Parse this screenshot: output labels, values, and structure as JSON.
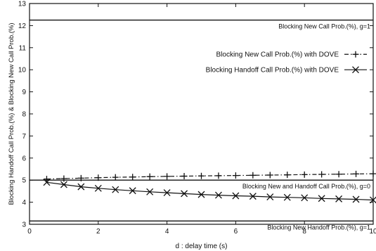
{
  "chart_data": {
    "type": "line",
    "xlabel": "d : delay time (s)",
    "ylabel": "Blocking Handoff Call Prob.(%) & Blocking New Call Prob.(%)",
    "xlim": [
      0,
      10
    ],
    "ylim": [
      3,
      13
    ],
    "xticks": [
      0,
      2,
      4,
      6,
      8,
      10
    ],
    "yticks": [
      3,
      4,
      5,
      6,
      7,
      8,
      9,
      10,
      11,
      12,
      13
    ],
    "grid": false,
    "legend_position": "top-right",
    "series": [
      {
        "name": "Blocking New Call Prob.(%) with DOVE",
        "marker": "plus",
        "line": "dash-dot",
        "x": [
          0.5,
          1.0,
          1.5,
          2.0,
          2.5,
          3.0,
          3.5,
          4.0,
          4.5,
          5.0,
          5.5,
          6.0,
          6.5,
          7.0,
          7.5,
          8.0,
          8.5,
          9.0,
          9.5,
          10.0
        ],
        "y": [
          5.05,
          5.07,
          5.09,
          5.11,
          5.13,
          5.14,
          5.16,
          5.17,
          5.18,
          5.19,
          5.2,
          5.21,
          5.22,
          5.23,
          5.24,
          5.25,
          5.26,
          5.27,
          5.28,
          5.29
        ]
      },
      {
        "name": "Blocking Handoff Call Prob.(%) with DOVE",
        "marker": "cross",
        "line": "solid",
        "x": [
          0.5,
          1.0,
          1.5,
          2.0,
          2.5,
          3.0,
          3.5,
          4.0,
          4.5,
          5.0,
          5.5,
          6.0,
          6.5,
          7.0,
          7.5,
          8.0,
          8.5,
          9.0,
          9.5,
          10.0
        ],
        "y": [
          4.9,
          4.8,
          4.7,
          4.63,
          4.57,
          4.52,
          4.47,
          4.43,
          4.39,
          4.35,
          4.32,
          4.29,
          4.27,
          4.24,
          4.22,
          4.2,
          4.17,
          4.15,
          4.13,
          4.1
        ]
      }
    ],
    "reference_lines": [
      {
        "label": "Blocking New Call Prob.(%), g=1",
        "y": 12.25
      },
      {
        "label": "Blocking New and Handoff Call Prob.(%), g=0",
        "y": 5.0
      },
      {
        "label": "Blocking New Handoff Prob.(%), g=1",
        "y": 3.15
      }
    ]
  }
}
